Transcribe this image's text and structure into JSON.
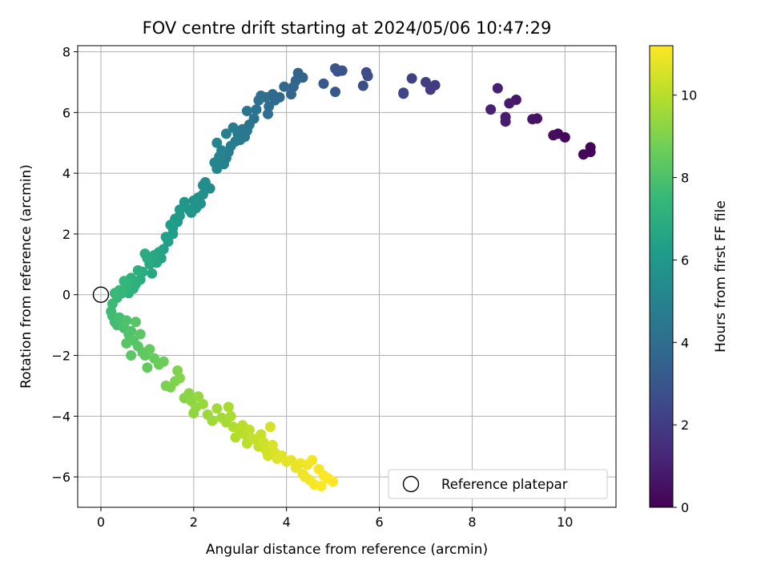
{
  "chart_data": {
    "type": "scatter",
    "title": "FOV centre drift starting at 2024/05/06 10:47:29",
    "xlabel": "Angular distance from reference (arcmin)",
    "ylabel": "Rotation from reference (arcmin)",
    "xlim": [
      -0.5,
      11.1
    ],
    "ylim": [
      -7.0,
      8.2
    ],
    "xticks": [
      0,
      2,
      4,
      6,
      8,
      10
    ],
    "yticks": [
      -6,
      -4,
      -2,
      0,
      2,
      4,
      6,
      8
    ],
    "grid": true,
    "legend": {
      "placement": "lower-right",
      "label": "Reference platepar"
    },
    "reference_point": {
      "x": 0,
      "y": 0
    },
    "colorbar": {
      "label": "Hours from first FF file",
      "colormap": "viridis",
      "range": [
        0,
        11.2
      ],
      "ticks": [
        0,
        2,
        4,
        6,
        8,
        10
      ]
    },
    "colormap_stops": [
      "#440154",
      "#482878",
      "#3e4989",
      "#31688e",
      "#26828e",
      "#1f9e89",
      "#35b779",
      "#6ece58",
      "#b5de2b",
      "#fde725"
    ],
    "points": [
      [
        10.55,
        4.85,
        0.05
      ],
      [
        10.55,
        4.7,
        0.1
      ],
      [
        10.4,
        4.62,
        0.15
      ],
      [
        10.0,
        5.18,
        0.25
      ],
      [
        9.85,
        5.3,
        0.3
      ],
      [
        9.75,
        5.25,
        0.35
      ],
      [
        9.4,
        5.8,
        0.5
      ],
      [
        9.3,
        5.78,
        0.55
      ],
      [
        8.95,
        6.42,
        0.7
      ],
      [
        8.8,
        6.3,
        0.8
      ],
      [
        8.72,
        5.85,
        0.85
      ],
      [
        8.72,
        5.7,
        0.9
      ],
      [
        8.55,
        6.8,
        1.0
      ],
      [
        8.4,
        6.1,
        1.05
      ],
      [
        7.2,
        6.9,
        2.0
      ],
      [
        7.1,
        6.75,
        2.05
      ],
      [
        7.0,
        7.0,
        2.1
      ],
      [
        6.7,
        7.12,
        2.2
      ],
      [
        6.52,
        6.65,
        2.3
      ],
      [
        6.52,
        6.62,
        2.35
      ],
      [
        5.75,
        7.2,
        2.6
      ],
      [
        5.72,
        7.32,
        2.65
      ],
      [
        5.65,
        6.88,
        2.7
      ],
      [
        5.2,
        7.38,
        2.9
      ],
      [
        5.1,
        7.35,
        2.95
      ],
      [
        5.05,
        7.45,
        3.0
      ],
      [
        5.05,
        6.68,
        3.05
      ],
      [
        4.8,
        6.95,
        3.15
      ],
      [
        4.35,
        7.15,
        3.5
      ],
      [
        4.25,
        7.3,
        3.55
      ],
      [
        4.2,
        7.05,
        3.6
      ],
      [
        4.15,
        6.85,
        3.65
      ],
      [
        4.1,
        6.6,
        3.7
      ],
      [
        3.95,
        6.85,
        3.75
      ],
      [
        3.85,
        6.5,
        3.8
      ],
      [
        3.75,
        6.4,
        3.85
      ],
      [
        3.7,
        6.6,
        3.9
      ],
      [
        3.62,
        6.2,
        3.95
      ],
      [
        3.6,
        5.95,
        4.0
      ],
      [
        3.55,
        6.5,
        4.05
      ],
      [
        3.45,
        6.55,
        4.1
      ],
      [
        3.4,
        6.4,
        4.15
      ],
      [
        3.35,
        6.1,
        4.2
      ],
      [
        3.3,
        5.8,
        4.25
      ],
      [
        3.2,
        5.6,
        4.3
      ],
      [
        3.15,
        6.05,
        4.35
      ],
      [
        3.15,
        5.4,
        4.4
      ],
      [
        3.1,
        5.2,
        4.45
      ],
      [
        3.05,
        5.45,
        4.5
      ],
      [
        3.0,
        5.1,
        4.55
      ],
      [
        2.95,
        5.3,
        4.6
      ],
      [
        2.9,
        5.05,
        4.65
      ],
      [
        2.85,
        5.5,
        4.7
      ],
      [
        2.8,
        4.9,
        4.75
      ],
      [
        2.75,
        4.7,
        4.8
      ],
      [
        2.7,
        4.5,
        4.85
      ],
      [
        2.7,
        5.3,
        4.9
      ],
      [
        2.65,
        4.3,
        4.95
      ],
      [
        2.6,
        4.75,
        5.0
      ],
      [
        2.55,
        4.55,
        5.05
      ],
      [
        2.5,
        5.0,
        5.1
      ],
      [
        2.5,
        4.15,
        5.15
      ],
      [
        2.45,
        4.35,
        5.2
      ],
      [
        2.35,
        3.5,
        5.4
      ],
      [
        2.25,
        3.7,
        5.45
      ],
      [
        2.2,
        3.3,
        5.5
      ],
      [
        2.2,
        3.6,
        5.55
      ],
      [
        2.15,
        3.0,
        5.6
      ],
      [
        2.1,
        3.2,
        5.65
      ],
      [
        2.05,
        2.85,
        5.7
      ],
      [
        2.0,
        3.1,
        5.75
      ],
      [
        1.95,
        2.7,
        5.8
      ],
      [
        1.9,
        2.8,
        5.85
      ],
      [
        1.8,
        3.05,
        5.9
      ],
      [
        1.7,
        2.6,
        5.95
      ],
      [
        1.7,
        2.8,
        6.0
      ],
      [
        1.65,
        2.4,
        6.05
      ],
      [
        1.6,
        2.5,
        6.1
      ],
      [
        1.55,
        2.2,
        6.15
      ],
      [
        1.55,
        2.0,
        6.2
      ],
      [
        1.5,
        2.3,
        6.25
      ],
      [
        1.45,
        1.75,
        6.3
      ],
      [
        1.4,
        1.9,
        6.35
      ],
      [
        1.35,
        1.5,
        6.4
      ],
      [
        1.3,
        1.2,
        6.5
      ],
      [
        1.25,
        1.4,
        6.55
      ],
      [
        1.2,
        1.05,
        6.6
      ],
      [
        1.15,
        1.3,
        6.65
      ],
      [
        1.1,
        0.7,
        6.7
      ],
      [
        1.05,
        1.0,
        6.75
      ],
      [
        1.0,
        1.2,
        6.8
      ],
      [
        0.95,
        1.35,
        6.85
      ],
      [
        0.9,
        0.75,
        6.9
      ],
      [
        0.85,
        0.5,
        6.95
      ],
      [
        0.8,
        0.8,
        7.0
      ],
      [
        0.75,
        0.35,
        7.05
      ],
      [
        0.7,
        0.2,
        7.1
      ],
      [
        0.65,
        0.55,
        7.15
      ],
      [
        0.6,
        0.05,
        7.2
      ],
      [
        0.6,
        0.4,
        7.25
      ],
      [
        0.55,
        0.25,
        7.3
      ],
      [
        0.5,
        0.45,
        7.35
      ],
      [
        0.45,
        0.05,
        7.4
      ],
      [
        0.4,
        0.15,
        7.45
      ],
      [
        0.35,
        -0.1,
        7.5
      ],
      [
        0.3,
        0.05,
        7.55
      ],
      [
        0.25,
        -0.3,
        7.6
      ],
      [
        0.22,
        -0.55,
        7.65
      ],
      [
        0.25,
        -0.7,
        7.7
      ],
      [
        0.3,
        -0.9,
        7.75
      ],
      [
        0.35,
        -1.0,
        7.8
      ],
      [
        0.4,
        -0.75,
        7.85
      ],
      [
        0.45,
        -0.95,
        7.9
      ],
      [
        0.5,
        -1.1,
        7.95
      ],
      [
        0.55,
        -0.85,
        8.0
      ],
      [
        0.6,
        -1.3,
        8.05
      ],
      [
        0.65,
        -1.2,
        8.1
      ],
      [
        0.7,
        -1.5,
        8.15
      ],
      [
        0.75,
        -0.9,
        8.2
      ],
      [
        0.8,
        -1.7,
        8.25
      ],
      [
        0.85,
        -1.3,
        8.3
      ],
      [
        0.9,
        -1.9,
        8.35
      ],
      [
        0.95,
        -2.0,
        8.4
      ],
      [
        1.0,
        -2.4,
        8.45
      ],
      [
        1.05,
        -1.8,
        8.5
      ],
      [
        1.15,
        -2.1,
        8.55
      ],
      [
        1.25,
        -2.3,
        8.6
      ],
      [
        1.35,
        -2.2,
        8.65
      ],
      [
        0.65,
        -2.0,
        8.3
      ],
      [
        0.55,
        -1.6,
        8.2
      ],
      [
        1.4,
        -3.0,
        8.9
      ],
      [
        1.5,
        -3.05,
        8.95
      ],
      [
        1.6,
        -2.85,
        9.0
      ],
      [
        1.65,
        -2.5,
        9.05
      ],
      [
        1.7,
        -2.75,
        9.1
      ],
      [
        1.8,
        -3.4,
        9.15
      ],
      [
        1.9,
        -3.25,
        9.2
      ],
      [
        1.95,
        -3.5,
        9.25
      ],
      [
        2.0,
        -3.9,
        9.3
      ],
      [
        2.05,
        -3.7,
        9.35
      ],
      [
        2.1,
        -3.35,
        9.4
      ],
      [
        2.2,
        -3.6,
        9.45
      ],
      [
        2.3,
        -3.95,
        9.5
      ],
      [
        2.4,
        -4.15,
        9.55
      ],
      [
        2.5,
        -3.75,
        9.6
      ],
      [
        2.6,
        -4.05,
        9.65
      ],
      [
        2.7,
        -4.2,
        9.7
      ],
      [
        2.75,
        -3.7,
        9.75
      ],
      [
        2.8,
        -4.0,
        9.8
      ],
      [
        2.85,
        -4.35,
        9.85
      ],
      [
        2.9,
        -4.7,
        9.9
      ],
      [
        3.0,
        -4.5,
        9.95
      ],
      [
        3.05,
        -4.3,
        10.0
      ],
      [
        3.1,
        -4.6,
        10.05
      ],
      [
        3.15,
        -4.9,
        10.1
      ],
      [
        3.2,
        -4.45,
        10.15
      ],
      [
        3.3,
        -4.75,
        10.2
      ],
      [
        3.4,
        -5.0,
        10.25
      ],
      [
        3.45,
        -4.6,
        10.3
      ],
      [
        3.5,
        -4.85,
        10.35
      ],
      [
        3.55,
        -5.1,
        10.4
      ],
      [
        3.6,
        -5.3,
        10.45
      ],
      [
        3.65,
        -4.35,
        10.5
      ],
      [
        3.7,
        -4.95,
        10.55
      ],
      [
        3.75,
        -5.2,
        10.6
      ],
      [
        3.8,
        -5.4,
        10.65
      ],
      [
        3.9,
        -5.3,
        10.7
      ],
      [
        4.0,
        -5.5,
        10.75
      ],
      [
        4.1,
        -5.45,
        10.8
      ],
      [
        4.2,
        -5.7,
        10.85
      ],
      [
        4.3,
        -5.55,
        10.9
      ],
      [
        4.35,
        -5.9,
        10.95
      ],
      [
        4.45,
        -5.6,
        11.0
      ],
      [
        4.5,
        -6.1,
        11.05
      ],
      [
        4.6,
        -6.25,
        11.1
      ],
      [
        4.7,
        -5.75,
        11.1
      ],
      [
        4.75,
        -6.3,
        11.15
      ],
      [
        4.8,
        -5.95,
        11.15
      ],
      [
        4.9,
        -6.05,
        11.2
      ],
      [
        5.0,
        -6.15,
        11.2
      ],
      [
        4.55,
        -5.45,
        11.0
      ],
      [
        4.4,
        -6.0,
        11.0
      ]
    ]
  }
}
